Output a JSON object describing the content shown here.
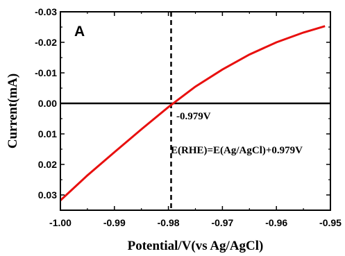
{
  "chart_data": {
    "type": "line",
    "panel_label": "A",
    "xlabel": "Potential/V(vs Ag/AgCl)",
    "ylabel": "Current(mA)",
    "xlim": [
      -1.0,
      -0.95
    ],
    "ylim": [
      -0.03,
      0.035
    ],
    "y_axis_inverted": true,
    "xticks": [
      -1.0,
      -0.99,
      -0.98,
      -0.97,
      -0.96,
      -0.95
    ],
    "xtick_labels": [
      "-1.00",
      "-0.99",
      "-0.98",
      "-0.97",
      "-0.96",
      "-0.95"
    ],
    "yticks": [
      -0.03,
      -0.02,
      -0.01,
      0.0,
      0.01,
      0.02,
      0.03
    ],
    "ytick_labels": [
      "-0.03",
      "-0.02",
      "-0.01",
      "0.00",
      "0.01",
      "0.02",
      "0.03"
    ],
    "grid": false,
    "series": [
      {
        "color": "#e8100f",
        "x": [
          -1.0,
          -0.995,
          -0.99,
          -0.985,
          -0.98,
          -0.975,
          -0.97,
          -0.965,
          -0.96,
          -0.955,
          -0.951
        ],
        "y": [
          0.0318,
          0.0236,
          0.016,
          0.0085,
          0.0012,
          -0.0055,
          -0.0111,
          -0.016,
          -0.02,
          -0.0232,
          -0.0253
        ]
      }
    ],
    "reference_lines": [
      {
        "orientation": "horizontal",
        "value": 0.0,
        "style": "solid",
        "color": "#000000"
      },
      {
        "orientation": "vertical",
        "value": -0.9795,
        "style": "dashed",
        "color": "#000000"
      }
    ],
    "annotations": {
      "intersection": "-0.979V",
      "equation": "E(RHE)=E(Ag/AgCl)+0.979V"
    }
  }
}
